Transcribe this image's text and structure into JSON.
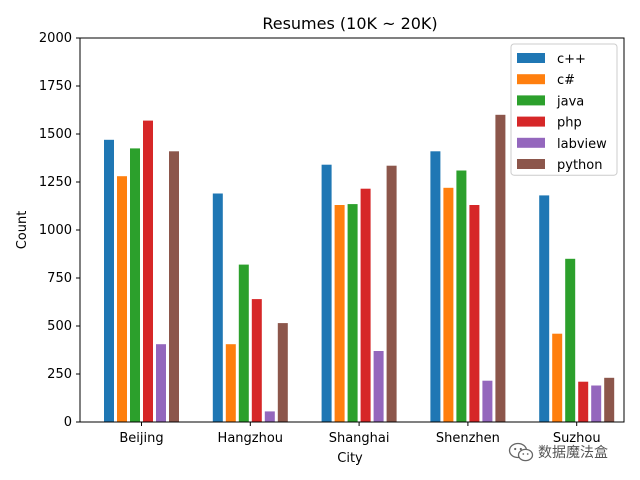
{
  "chart_data": {
    "type": "bar",
    "title": "Resumes (10K ~ 20K)",
    "xlabel": "City",
    "ylabel": "Count",
    "ylim": [
      0,
      2000
    ],
    "yticks": [
      0,
      250,
      500,
      750,
      1000,
      1250,
      1500,
      1750,
      2000
    ],
    "ytick_labels": [
      "0",
      "250",
      "500",
      "750",
      "1000",
      "1250",
      "1500",
      "1750",
      "2000"
    ],
    "categories": [
      "Beijing",
      "Hangzhou",
      "Shanghai",
      "Shenzhen",
      "Suzhou"
    ],
    "legend_position": "top-right",
    "grid": false,
    "series": [
      {
        "name": "c++",
        "color": "#1f77b4",
        "values": [
          1470,
          1190,
          1340,
          1410,
          1180
        ]
      },
      {
        "name": "c#",
        "color": "#ff7f0e",
        "values": [
          1280,
          405,
          1130,
          1220,
          460
        ]
      },
      {
        "name": "java",
        "color": "#2ca02c",
        "values": [
          1425,
          820,
          1135,
          1310,
          850
        ]
      },
      {
        "name": "php",
        "color": "#d62728",
        "values": [
          1570,
          640,
          1215,
          1130,
          210
        ]
      },
      {
        "name": "labview",
        "color": "#9467bd",
        "values": [
          405,
          55,
          370,
          215,
          190
        ]
      },
      {
        "name": "python",
        "color": "#8c564b",
        "values": [
          1410,
          515,
          1335,
          1600,
          230
        ]
      }
    ]
  },
  "watermark": {
    "text": "数据魔法盒",
    "icon": "wechat-icon"
  }
}
